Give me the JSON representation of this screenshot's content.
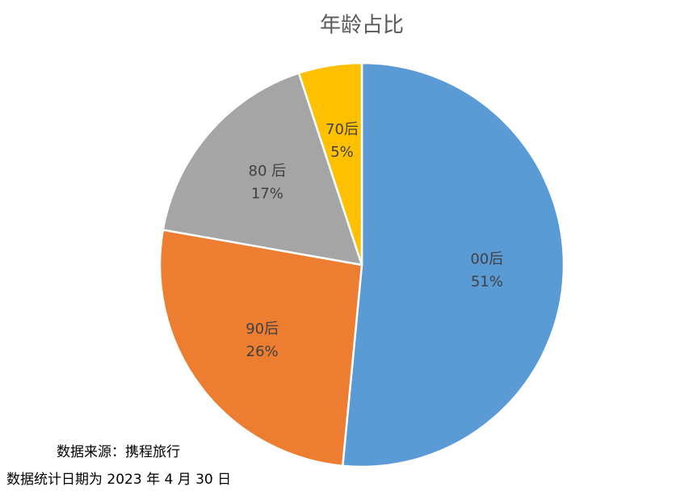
{
  "chart_data": {
    "type": "pie",
    "title": "年龄占比",
    "categories": [
      "00后",
      "90后",
      "80 后",
      "70后"
    ],
    "values": [
      51,
      26,
      17,
      5
    ],
    "value_labels": [
      "51%",
      "26%",
      "17%",
      "5%"
    ],
    "colors": [
      "#5b9bd5",
      "#ed7d31",
      "#a5a5a5",
      "#ffc000"
    ],
    "annotations": [
      "数据来源：携程旅行",
      "数据统计日期为 2023 年 4 月 30 日"
    ]
  }
}
